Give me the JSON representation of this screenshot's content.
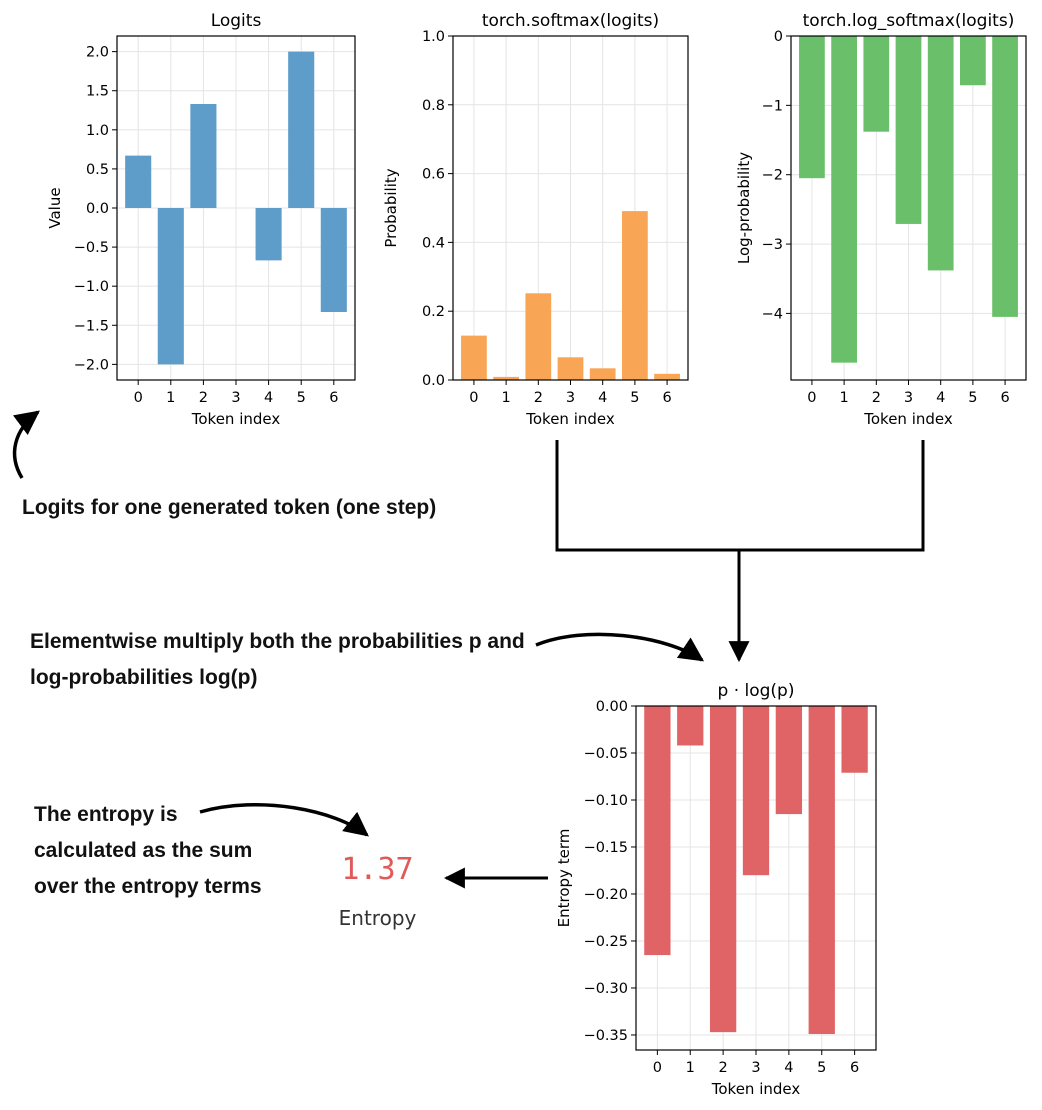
{
  "colors": {
    "blue": "#5e9cc9",
    "orange": "#f8a655",
    "green": "#6ac06a",
    "red": "#e06466",
    "value": "#e05a5a"
  },
  "chart_data": [
    {
      "type": "bar",
      "title": "Logits",
      "xlabel": "Token index",
      "ylabel": "Value",
      "categories": [
        "0",
        "1",
        "2",
        "3",
        "4",
        "5",
        "6"
      ],
      "values": [
        0.67,
        -2.0,
        1.33,
        0.0,
        -0.67,
        2.0,
        -1.33
      ],
      "ylim": [
        -2.2,
        2.2
      ],
      "yticks": [
        -2.0,
        -1.5,
        -1.0,
        -0.5,
        0.0,
        0.5,
        1.0,
        1.5,
        2.0
      ],
      "yticklabels": [
        "−2.0",
        "−1.5",
        "−1.0",
        "−0.5",
        "0.0",
        "0.5",
        "1.0",
        "1.5",
        "2.0"
      ],
      "grid": true
    },
    {
      "type": "bar",
      "title": "torch.softmax(logits)",
      "xlabel": "Token index",
      "ylabel": "Probability",
      "categories": [
        "0",
        "1",
        "2",
        "3",
        "4",
        "5",
        "6"
      ],
      "values": [
        0.129,
        0.009,
        0.252,
        0.066,
        0.034,
        0.491,
        0.018
      ],
      "ylim": [
        0.0,
        1.0
      ],
      "yticks": [
        0.0,
        0.2,
        0.4,
        0.6,
        0.8,
        1.0
      ],
      "yticklabels": [
        "0.0",
        "0.2",
        "0.4",
        "0.6",
        "0.8",
        "1.0"
      ],
      "grid": true
    },
    {
      "type": "bar",
      "title": "torch.log_softmax(logits)",
      "xlabel": "Token index",
      "ylabel": "Log-probability",
      "categories": [
        "0",
        "1",
        "2",
        "3",
        "4",
        "5",
        "6"
      ],
      "values": [
        -2.05,
        -4.71,
        -1.38,
        -2.71,
        -3.38,
        -0.71,
        -4.05
      ],
      "ylim": [
        -4.96,
        0.0
      ],
      "yticks": [
        -4,
        -3,
        -2,
        -1,
        0
      ],
      "yticklabels": [
        "−4",
        "−3",
        "−2",
        "−1",
        "0"
      ],
      "grid": true
    },
    {
      "type": "bar",
      "title": "p · log(p)",
      "xlabel": "Token index",
      "ylabel": "Entropy term",
      "categories": [
        "0",
        "1",
        "2",
        "3",
        "4",
        "5",
        "6"
      ],
      "values": [
        -0.265,
        -0.042,
        -0.347,
        -0.18,
        -0.115,
        -0.349,
        -0.071
      ],
      "ylim": [
        -0.366,
        0.0
      ],
      "yticks": [
        -0.35,
        -0.3,
        -0.25,
        -0.2,
        -0.15,
        -0.1,
        -0.05,
        0.0
      ],
      "yticklabels": [
        "−0.35",
        "−0.30",
        "−0.25",
        "−0.20",
        "−0.15",
        "−0.10",
        "−0.05",
        "0.00"
      ],
      "grid": true
    }
  ],
  "annotations": {
    "logits_note": "Logits for one generated token (one step)",
    "multiply_note": [
      "Elementwise multiply both the probabilities p and",
      "log-probabilities log(p)"
    ],
    "entropy_note": [
      "The entropy is",
      "calculated as the sum",
      "over the entropy terms"
    ]
  },
  "entropy": {
    "value": "1.37",
    "label": "Entropy"
  }
}
